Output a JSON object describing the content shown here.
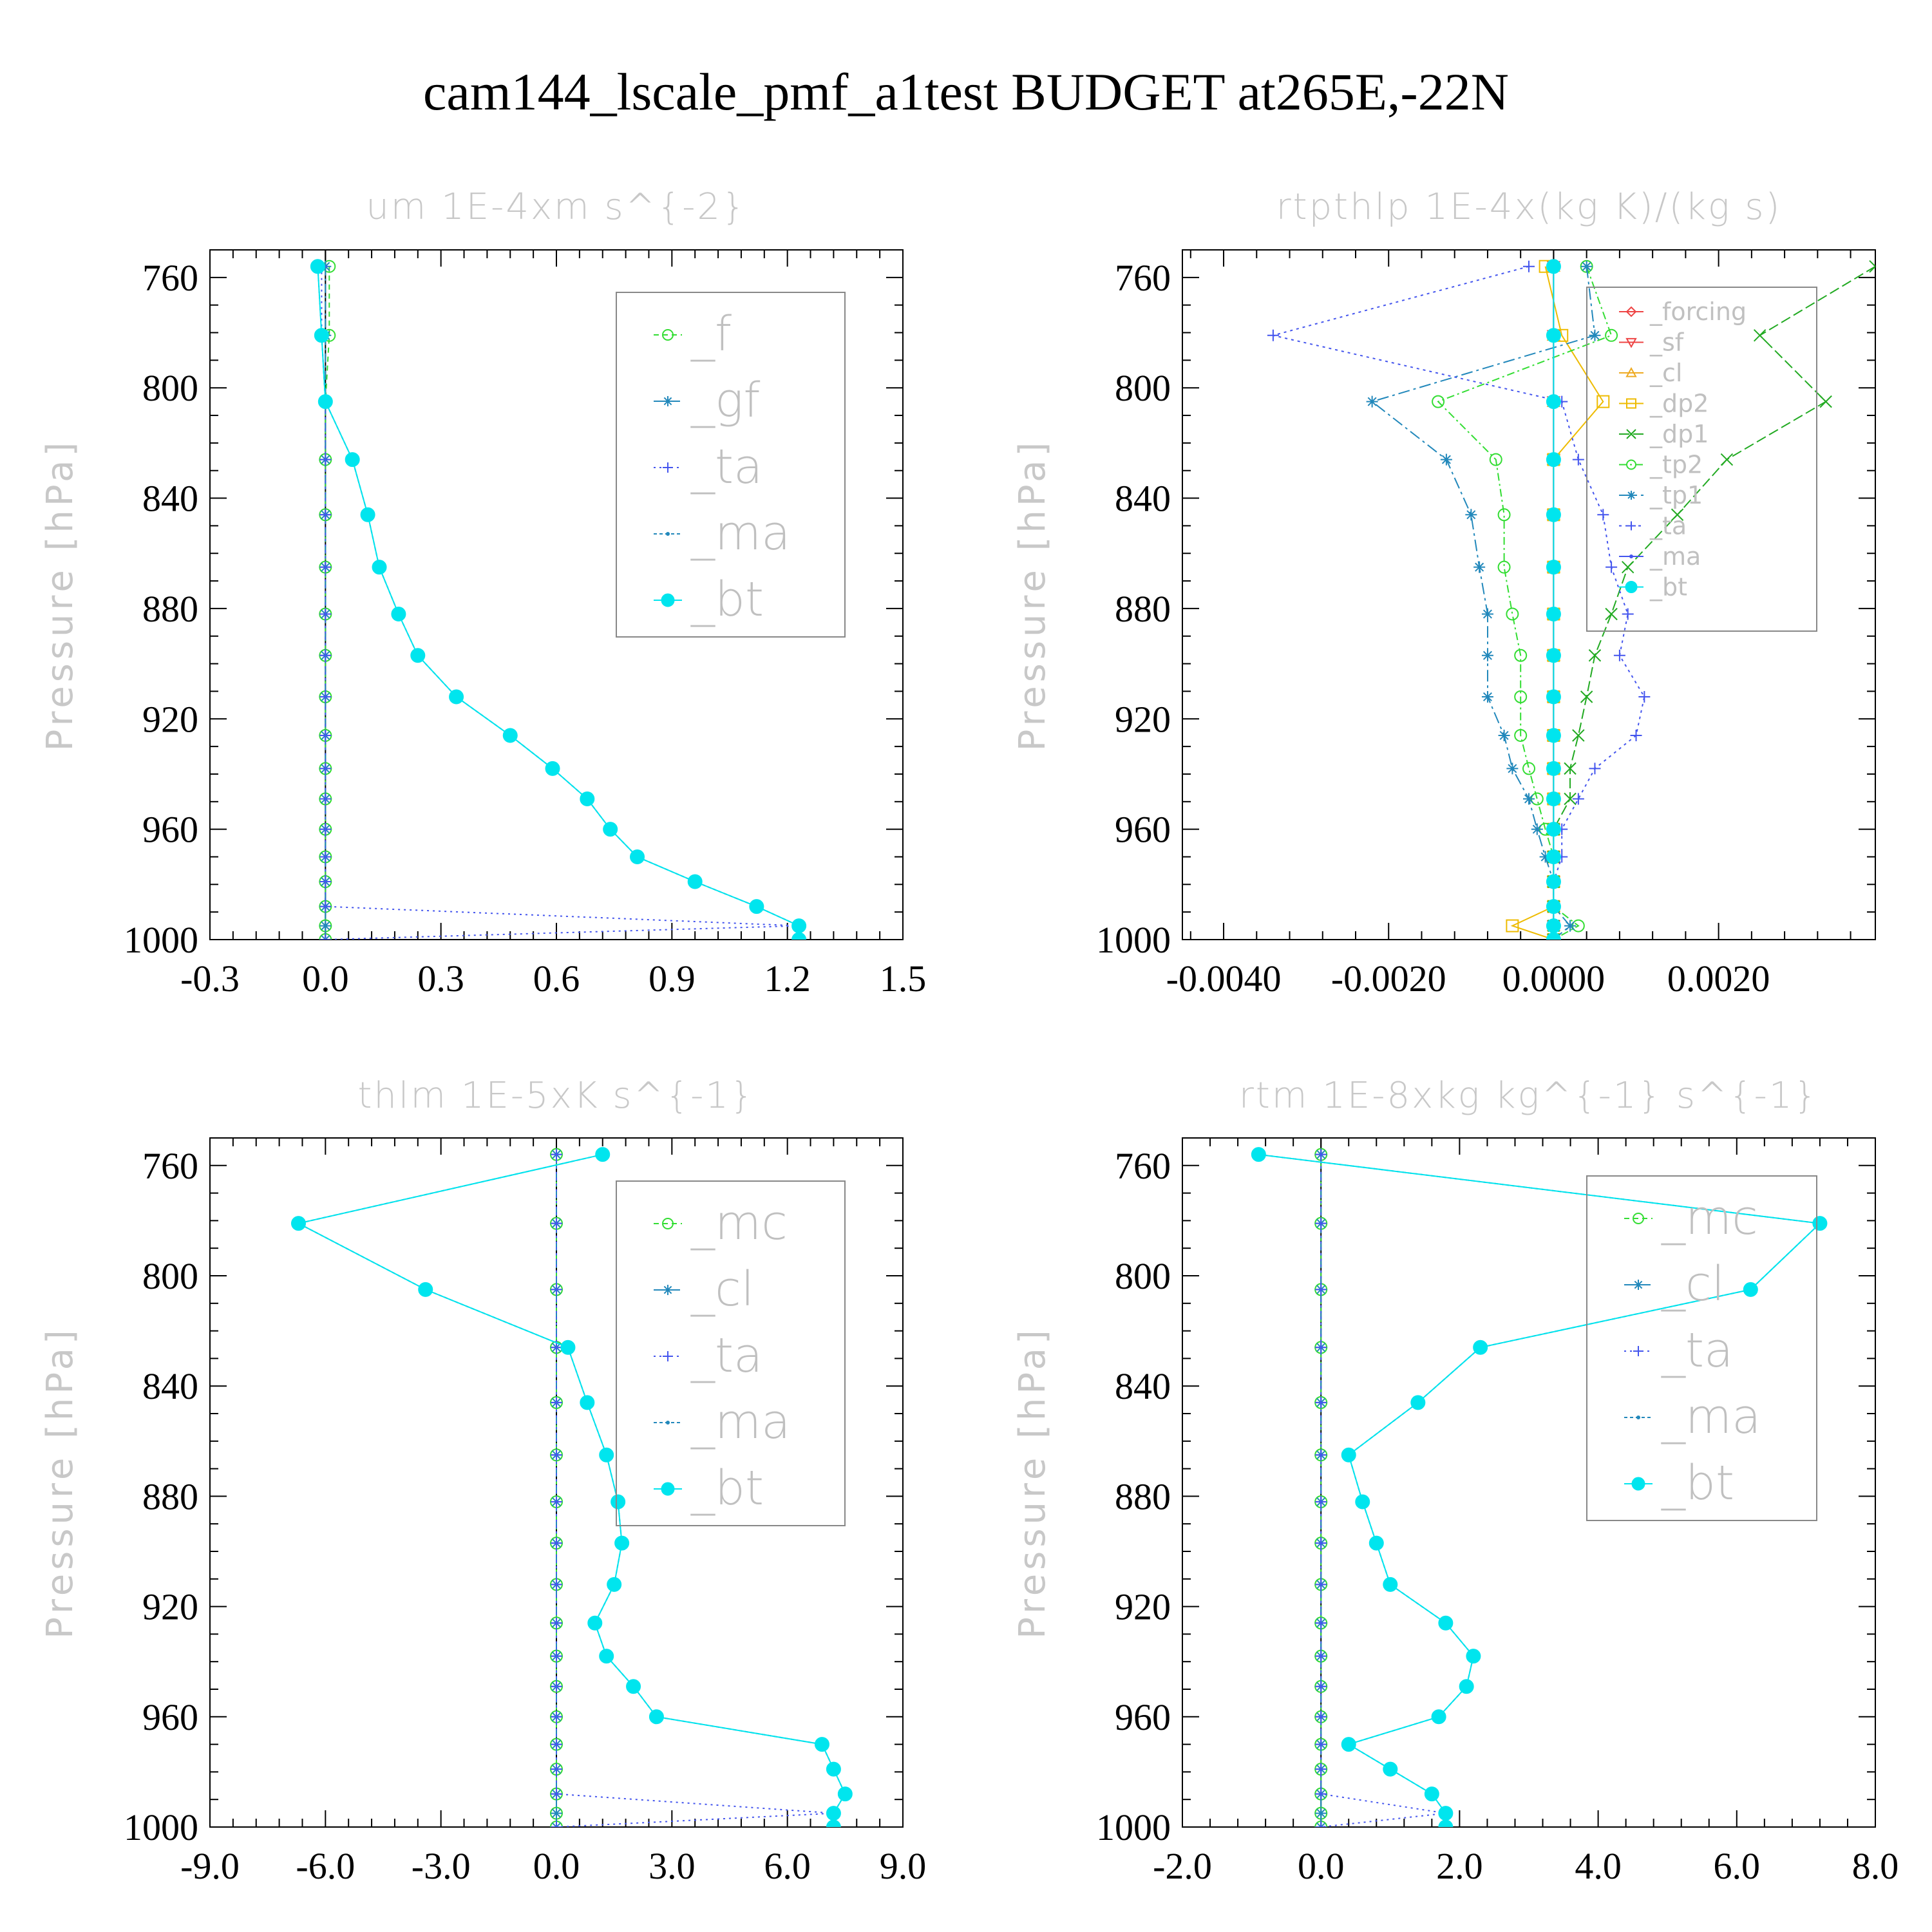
{
  "figure": {
    "title": "cam144_lscale_pmf_a1test  BUDGET at265E,-22N"
  },
  "colors": {
    "green": "#33dd33",
    "steelblue": "#2288bb",
    "blue": "#4455ee",
    "cyan": "#00e5ee",
    "red": "#ee4444",
    "orange": "#eeaa22",
    "amber": "#eebb00",
    "darkgreen": "#22aa22",
    "frame": "#000000",
    "ticklabel": "#000000",
    "faint_text": "#c8c8c8"
  },
  "chart_data": [
    {
      "type": "line",
      "panel": "top-left",
      "title": "um  1E-4xm s^{-2}",
      "ylabel": "Pressure [hPa]",
      "xlabel": "",
      "orientation": "vertical-profile",
      "y": [
        756,
        781,
        805,
        826,
        846,
        865,
        882,
        897,
        912,
        926,
        938,
        949,
        960,
        970,
        979,
        988,
        995,
        1000
      ],
      "ylim": [
        1000,
        750
      ],
      "xlim": [
        -0.3,
        1.5
      ],
      "xticks": [
        "-0.3",
        "0.0",
        "0.3",
        "0.6",
        "0.9",
        "1.2",
        "1.5"
      ],
      "yticks": [
        "760",
        "800",
        "840",
        "880",
        "920",
        "960",
        "1000"
      ],
      "legend_location": "upper-right",
      "legend_style": "big",
      "series": [
        {
          "name": "_f",
          "color": "green",
          "marker": "circle",
          "dash": "8,6",
          "values": [
            0.01,
            0.01,
            0,
            0,
            0,
            0,
            0,
            0,
            0,
            0,
            0,
            0,
            0,
            0,
            0,
            0,
            0,
            0
          ]
        },
        {
          "name": "_gf",
          "color": "steelblue",
          "marker": "star",
          "dash": "14,5,3,5",
          "values": [
            0,
            0,
            0,
            0,
            0,
            0,
            0,
            0,
            0,
            0,
            0,
            0,
            0,
            0,
            0,
            0,
            0,
            0
          ]
        },
        {
          "name": "_ta",
          "color": "blue",
          "marker": "plus",
          "dash": "3,6",
          "values": [
            -0.01,
            -0.01,
            0,
            0,
            0,
            0,
            0,
            0,
            0,
            0,
            0,
            0,
            0,
            0,
            0,
            0,
            1.23,
            0
          ]
        },
        {
          "name": "_ma",
          "color": "steelblue",
          "marker": "dot",
          "dash": "5,4",
          "values": [
            -0.02,
            -0.01,
            0,
            0.07,
            0.11,
            0.14,
            0.19,
            0.24,
            0.34,
            0.48,
            0.59,
            0.68,
            0.74,
            0.81,
            0.96,
            1.12,
            1.23,
            1.23
          ]
        },
        {
          "name": "_bt",
          "color": "cyan",
          "marker": "filled",
          "dash": "",
          "values": [
            -0.02,
            -0.01,
            0,
            0.07,
            0.11,
            0.14,
            0.19,
            0.24,
            0.34,
            0.48,
            0.59,
            0.68,
            0.74,
            0.81,
            0.96,
            1.12,
            1.23,
            1.23
          ]
        }
      ]
    },
    {
      "type": "line",
      "panel": "top-right",
      "title": "rtpthlp  1E-4x(kg K)/(kg s)",
      "ylabel": "Pressure [hPa]",
      "xlabel": "",
      "orientation": "vertical-profile",
      "y": [
        756,
        781,
        805,
        826,
        846,
        865,
        882,
        897,
        912,
        926,
        938,
        949,
        960,
        970,
        979,
        988,
        995,
        1000
      ],
      "ylim": [
        1000,
        750
      ],
      "xlim": [
        -0.0045,
        0.0039
      ],
      "xticks": [
        "-0.0040",
        "-0.0020",
        "0.0000",
        "0.0020"
      ],
      "xtick_values": [
        -0.004,
        -0.002,
        0.0,
        0.002
      ],
      "yticks": [
        "760",
        "800",
        "840",
        "880",
        "920",
        "960",
        "1000"
      ],
      "legend_location": "upper-right",
      "legend_style": "small",
      "series": [
        {
          "name": "_forcing",
          "color": "red",
          "marker": "diamond",
          "dash": "",
          "values": [
            0,
            0,
            0,
            0,
            0,
            0,
            0,
            0,
            0,
            0,
            0,
            0,
            0,
            0,
            0,
            0,
            0,
            0
          ]
        },
        {
          "name": "_sf",
          "color": "red",
          "marker": "triangle-down",
          "dash": "",
          "values": [
            0,
            0,
            0,
            0,
            0,
            0,
            0,
            0,
            0,
            0,
            0,
            0,
            0,
            0,
            0,
            0,
            0,
            0
          ]
        },
        {
          "name": "_cl",
          "color": "orange",
          "marker": "triangle-up",
          "dash": "",
          "values": [
            0,
            0,
            0,
            0,
            0,
            0,
            0,
            0,
            0,
            0,
            0,
            0,
            0,
            0,
            0,
            0,
            0,
            0
          ]
        },
        {
          "name": "_dp2",
          "color": "amber",
          "marker": "square",
          "dash": "",
          "values": [
            -0.0001,
            0.0001,
            0.0006,
            0,
            0,
            0,
            0,
            0,
            0,
            0,
            0,
            0,
            0,
            0,
            0,
            0,
            -0.0005,
            0
          ]
        },
        {
          "name": "_dp1",
          "color": "darkgreen",
          "marker": "cross",
          "dash": "16,6",
          "values": [
            0.0039,
            0.0025,
            0.0033,
            0.0021,
            0.0015,
            0.0009,
            0.0007,
            0.0005,
            0.0004,
            0.0003,
            0.0002,
            0.0002,
            0,
            0,
            0,
            0,
            0,
            0
          ]
        },
        {
          "name": "_tp2",
          "color": "green",
          "marker": "circle",
          "dash": "12,5,3,5",
          "values": [
            0.0004,
            0.0007,
            -0.0014,
            -0.0007,
            -0.0006,
            -0.0006,
            -0.0005,
            -0.0004,
            -0.0004,
            -0.0004,
            -0.0003,
            -0.0002,
            -0.0001,
            0,
            0,
            0,
            0.0003,
            0
          ]
        },
        {
          "name": "_tp1",
          "color": "steelblue",
          "marker": "star",
          "dash": "18,6,4,6",
          "values": [
            0.0004,
            0.0005,
            -0.0022,
            -0.0013,
            -0.001,
            -0.0009,
            -0.0008,
            -0.0008,
            -0.0008,
            -0.0006,
            -0.0005,
            -0.0003,
            -0.0002,
            -0.0001,
            0,
            0,
            0.0002,
            0
          ]
        },
        {
          "name": "_ta",
          "color": "blue",
          "marker": "plus",
          "dash": "4,6",
          "values": [
            -0.0003,
            -0.0034,
            0.0001,
            0.0003,
            0.0006,
            0.0007,
            0.0009,
            0.0008,
            0.0011,
            0.001,
            0.0005,
            0.0003,
            0.0001,
            0.0001,
            0,
            0,
            0,
            0
          ]
        },
        {
          "name": "_ma",
          "color": "blue",
          "marker": "dot",
          "dash": "",
          "values": [
            0,
            0,
            0,
            0,
            0,
            0,
            0,
            0,
            0,
            0,
            0,
            0,
            0,
            0,
            0,
            0,
            0,
            0
          ]
        },
        {
          "name": "_bt",
          "color": "cyan",
          "marker": "filled",
          "dash": "",
          "values": [
            0,
            0,
            0,
            0,
            0,
            0,
            0,
            0,
            0,
            0,
            0,
            0,
            0,
            0,
            0,
            0,
            0,
            0
          ]
        }
      ]
    },
    {
      "type": "line",
      "panel": "bottom-left",
      "title": "thlm  1E-5xK s^{-1}",
      "ylabel": "Pressure [hPa]",
      "xlabel": "",
      "orientation": "vertical-profile",
      "y": [
        756,
        781,
        805,
        826,
        846,
        865,
        882,
        897,
        912,
        926,
        938,
        949,
        960,
        970,
        979,
        988,
        995,
        1000
      ],
      "ylim": [
        1000,
        750
      ],
      "xlim": [
        -9.0,
        9.0
      ],
      "xticks": [
        "-9.0",
        "-6.0",
        "-3.0",
        "0.0",
        "3.0",
        "6.0",
        "9.0"
      ],
      "yticks": [
        "760",
        "800",
        "840",
        "880",
        "920",
        "960",
        "1000"
      ],
      "legend_location": "upper-right",
      "legend_style": "big",
      "series": [
        {
          "name": "_mc",
          "color": "green",
          "marker": "circle",
          "dash": "8,6",
          "values": [
            0,
            0,
            0,
            0,
            0,
            0,
            0,
            0,
            0,
            0,
            0,
            0,
            0,
            0,
            0,
            0,
            0,
            0
          ]
        },
        {
          "name": "_cl",
          "color": "steelblue",
          "marker": "star",
          "dash": "14,5,3,5",
          "values": [
            0,
            0,
            0,
            0,
            0,
            0,
            0,
            0,
            0,
            0,
            0,
            0,
            0,
            0,
            0,
            0,
            0,
            0
          ]
        },
        {
          "name": "_ta",
          "color": "blue",
          "marker": "plus",
          "dash": "3,6",
          "values": [
            0,
            0,
            0,
            0,
            0,
            0,
            0,
            0,
            0,
            0,
            0,
            0,
            0,
            0,
            0,
            0,
            7.2,
            0
          ]
        },
        {
          "name": "_ma",
          "color": "steelblue",
          "marker": "dot",
          "dash": "5,4",
          "values": [
            1.2,
            -6.7,
            -3.4,
            0.3,
            0.8,
            1.3,
            1.6,
            1.7,
            1.5,
            1.0,
            1.3,
            2.0,
            2.6,
            6.9,
            7.2,
            7.5,
            7.2,
            7.2
          ]
        },
        {
          "name": "_bt",
          "color": "cyan",
          "marker": "filled",
          "dash": "",
          "values": [
            1.2,
            -6.7,
            -3.4,
            0.3,
            0.8,
            1.3,
            1.6,
            1.7,
            1.5,
            1.0,
            1.3,
            2.0,
            2.6,
            6.9,
            7.2,
            7.5,
            7.2,
            7.2
          ]
        }
      ]
    },
    {
      "type": "line",
      "panel": "bottom-right",
      "title": "rtm  1E-8xkg kg^{-1} s^{-1}",
      "ylabel": "Pressure [hPa]",
      "xlabel": "",
      "orientation": "vertical-profile",
      "y": [
        756,
        781,
        805,
        826,
        846,
        865,
        882,
        897,
        912,
        926,
        938,
        949,
        960,
        970,
        979,
        988,
        995,
        1000
      ],
      "ylim": [
        1000,
        750
      ],
      "xlim": [
        -2.0,
        8.0
      ],
      "xticks": [
        "-2.0",
        "0.0",
        "2.0",
        "4.0",
        "6.0",
        "8.0"
      ],
      "yticks": [
        "760",
        "800",
        "840",
        "880",
        "920",
        "960",
        "1000"
      ],
      "legend_location": "upper-right",
      "legend_style": "big",
      "series": [
        {
          "name": "_mc",
          "color": "green",
          "marker": "circle",
          "dash": "8,6",
          "values": [
            0,
            0,
            0,
            0,
            0,
            0,
            0,
            0,
            0,
            0,
            0,
            0,
            0,
            0,
            0,
            0,
            0,
            0
          ]
        },
        {
          "name": "_cl",
          "color": "steelblue",
          "marker": "star",
          "dash": "14,5,3,5",
          "values": [
            0,
            0,
            0,
            0,
            0,
            0,
            0,
            0,
            0,
            0,
            0,
            0,
            0,
            0,
            0,
            0,
            0,
            0
          ]
        },
        {
          "name": "_ta",
          "color": "blue",
          "marker": "plus",
          "dash": "3,6",
          "values": [
            0,
            0,
            0,
            0,
            0,
            0,
            0,
            0,
            0,
            0,
            0,
            0,
            0,
            0,
            0,
            0,
            1.8,
            0
          ]
        },
        {
          "name": "_ma",
          "color": "steelblue",
          "marker": "dot",
          "dash": "5,4",
          "values": [
            -0.9,
            7.2,
            6.2,
            2.3,
            1.4,
            0.4,
            0.6,
            0.8,
            1.0,
            1.8,
            2.2,
            2.1,
            1.7,
            0.4,
            1.0,
            1.6,
            1.8,
            1.8
          ]
        },
        {
          "name": "_bt",
          "color": "cyan",
          "marker": "filled",
          "dash": "",
          "values": [
            -0.9,
            7.2,
            6.2,
            2.3,
            1.4,
            0.4,
            0.6,
            0.8,
            1.0,
            1.8,
            2.2,
            2.1,
            1.7,
            0.4,
            1.0,
            1.6,
            1.8,
            1.8
          ]
        }
      ]
    }
  ]
}
